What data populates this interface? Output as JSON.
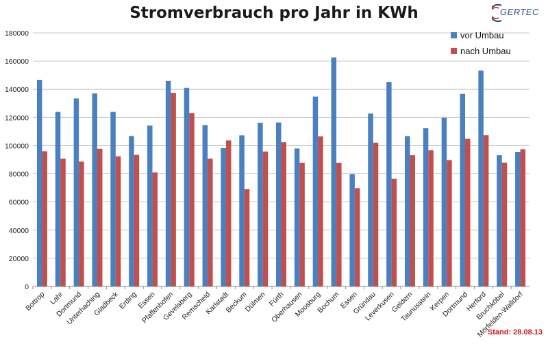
{
  "brand": {
    "logo_text": "GERTEC",
    "accent_color": "#2f4f8f"
  },
  "footer": {
    "stand": "Stand: 28.08.13"
  },
  "chart_data": {
    "type": "bar",
    "title": "Stromverbrauch pro Jahr in KWh",
    "xlabel": "",
    "ylabel": "",
    "ylim": [
      0,
      180000
    ],
    "yticks": [
      "0",
      "20000",
      "40000",
      "60000",
      "80000",
      "100000",
      "120000",
      "140000",
      "160000",
      "180000"
    ],
    "grid": true,
    "legend_position": "top-right",
    "categories": [
      "Bottrop",
      "Lahr",
      "Dortmund",
      "Unterhaching",
      "Gladbeck",
      "Erding",
      "Essen",
      "Pfaffenhofen",
      "Gevelsberg",
      "Remscheid",
      "Karlstadt",
      "Beckum",
      "Dülmen",
      "Fürth",
      "Oberhausen",
      "Moosburg",
      "Bochum",
      "Essen",
      "Gründau",
      "Leverkusen",
      "Geldern",
      "Taunusstein",
      "Kerpen",
      "Dortmund",
      "Herford",
      "Bruchköbel",
      "Mörfelden-Walldorf"
    ],
    "series": [
      {
        "name": "vor Umbau",
        "color": "#4a7fc1",
        "values": [
          146500,
          124000,
          133500,
          137000,
          124000,
          106800,
          114200,
          146000,
          141000,
          114500,
          98300,
          107300,
          116200,
          116400,
          98000,
          134800,
          162600,
          79700,
          122800,
          145000,
          106700,
          112300,
          119800,
          136800,
          153300,
          93300,
          95400
        ]
      },
      {
        "name": "nach Umbau",
        "color": "#c0504d",
        "values": [
          96000,
          90700,
          88700,
          97800,
          92300,
          93500,
          81000,
          137300,
          123000,
          90700,
          103700,
          69000,
          95700,
          102500,
          87700,
          106500,
          87700,
          69800,
          102000,
          76500,
          93300,
          96700,
          89700,
          104800,
          107400,
          87800,
          97400
        ]
      }
    ]
  }
}
